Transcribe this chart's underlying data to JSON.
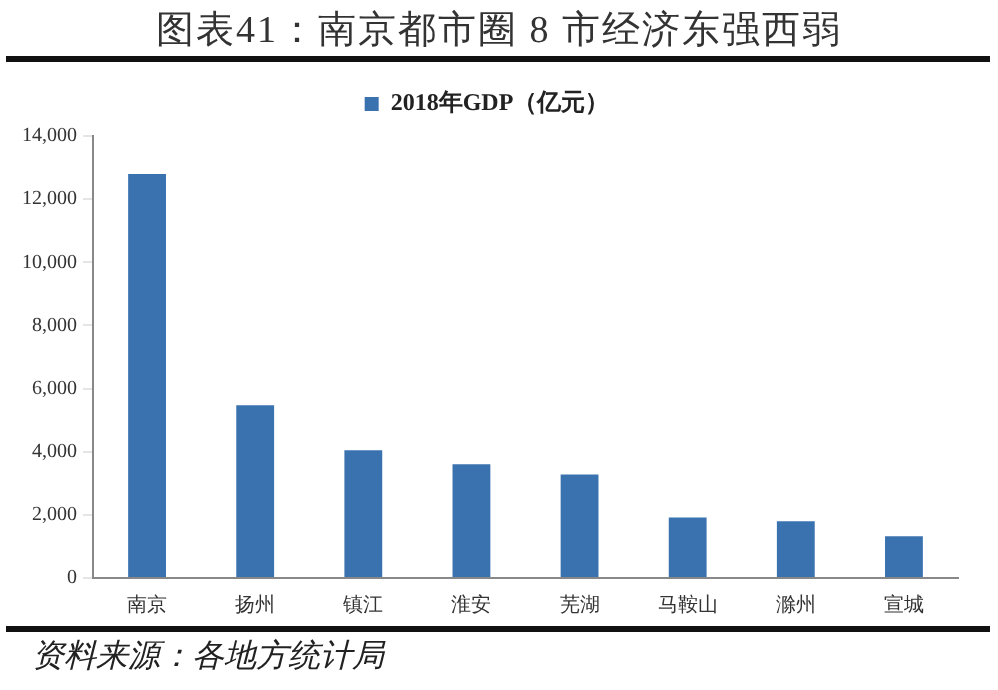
{
  "chart_data": {
    "type": "bar",
    "title": "图表41：南京都市圈 8 市经济东强西弱",
    "categories": [
      "南京",
      "扬州",
      "镇江",
      "淮安",
      "芜湖",
      "马鞍山",
      "滁州",
      "宣城"
    ],
    "series": [
      {
        "name": "2018年GDP（亿元）",
        "color": "#3a72b0",
        "values": [
          12800,
          5470,
          4050,
          3600,
          3280,
          1920,
          1800,
          1320
        ]
      }
    ],
    "ylim": [
      0,
      14000
    ],
    "yticks": [
      0,
      {
        "value": 2000,
        "label": "2,000"
      },
      {
        "value": 4000,
        "label": "4,000"
      },
      {
        "value": 6000,
        "label": "6,000"
      },
      {
        "value": 8000,
        "label": "8,000"
      },
      {
        "value": 10000,
        "label": "10,000"
      },
      {
        "value": 12000,
        "label": "12,000"
      },
      {
        "value": 14000,
        "label": "14,000"
      }
    ],
    "grid": false,
    "legend": "top",
    "annotations": [
      "资料来源：各地方统计局"
    ]
  }
}
